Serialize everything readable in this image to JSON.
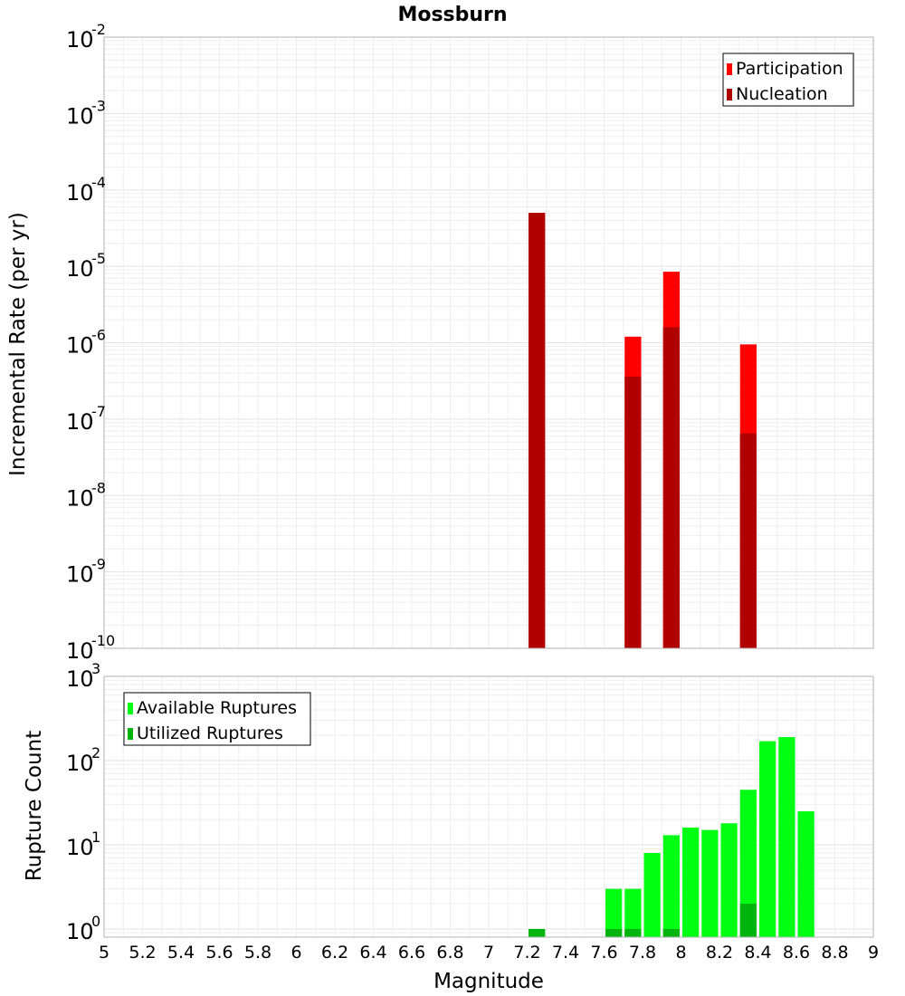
{
  "chart_data": {
    "title": "Mossburn",
    "xlabel": "Magnitude",
    "xlim": [
      5,
      9
    ],
    "x_ticks": [
      "5",
      "5.2",
      "5.4",
      "5.6",
      "5.8",
      "6",
      "6.2",
      "6.4",
      "6.6",
      "6.8",
      "7",
      "7.2",
      "7.4",
      "7.6",
      "7.8",
      "8",
      "8.2",
      "8.4",
      "8.6",
      "8.8",
      "9"
    ],
    "bin_width": 0.1,
    "panels": [
      {
        "type": "bar",
        "scale": "log",
        "ylabel": "Incremental Rate (per yr)",
        "ylim": [
          1e-10,
          0.01
        ],
        "y_tick_exponents": [
          "-10",
          "-9",
          "-8",
          "-7",
          "-6",
          "-5",
          "-4",
          "-3",
          "-2"
        ],
        "legend_position": "top-right",
        "series": [
          {
            "name": "Participation",
            "color": "#ff0000",
            "x": [
              7.25,
              7.75,
              7.95,
              8.35
            ],
            "values": [
              5e-05,
              1.2e-06,
              8.5e-06,
              9.5e-07
            ]
          },
          {
            "name": "Nucleation",
            "color": "#b00000",
            "x": [
              7.25,
              7.75,
              7.95,
              8.35
            ],
            "values": [
              5e-05,
              3.6e-07,
              1.6e-06,
              6.5e-08
            ]
          }
        ]
      },
      {
        "type": "bar",
        "scale": "log",
        "ylabel": "Rupture Count",
        "ylim": [
          0.8,
          1000
        ],
        "y_tick_exponents": [
          "0",
          "1",
          "2",
          "3"
        ],
        "legend_position": "top-left",
        "series": [
          {
            "name": "Available Ruptures",
            "color": "#00ff12",
            "x": [
              7.25,
              7.65,
              7.75,
              7.85,
              7.95,
              8.05,
              8.15,
              8.25,
              8.35,
              8.45,
              8.55,
              8.65
            ],
            "values": [
              1,
              3,
              3,
              8,
              13,
              16,
              15,
              18,
              45,
              170,
              190,
              25
            ]
          },
          {
            "name": "Utilized Ruptures",
            "color": "#00b40e",
            "x": [
              7.25,
              7.65,
              7.75,
              7.95,
              8.35
            ],
            "values": [
              1,
              1,
              1,
              1,
              2
            ]
          }
        ]
      }
    ]
  }
}
